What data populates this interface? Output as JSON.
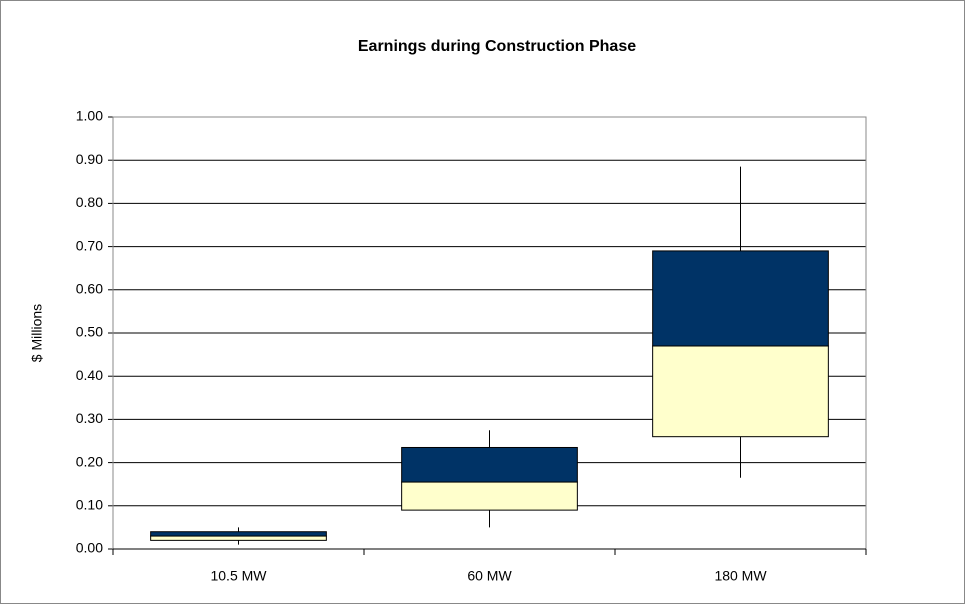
{
  "chart_data": {
    "type": "box",
    "title": "Earnings during Construction Phase",
    "y_label": "$ Millions",
    "categories": [
      "10.5 MW",
      "60 MW",
      "180 MW"
    ],
    "boxes": [
      {
        "min": 0.01,
        "q1": 0.02,
        "median": 0.03,
        "q3": 0.04,
        "max": 0.05
      },
      {
        "min": 0.05,
        "q1": 0.09,
        "median": 0.155,
        "q3": 0.235,
        "max": 0.275
      },
      {
        "min": 0.165,
        "q1": 0.26,
        "median": 0.47,
        "q3": 0.69,
        "max": 0.885
      }
    ],
    "lower_color": "#ffffcc",
    "upper_color": "#003366",
    "ylim": [
      0,
      1
    ],
    "yticks": [
      {
        "value": 0,
        "label": "0.00"
      },
      {
        "value": 0.1,
        "label": "0.10"
      },
      {
        "value": 0.2,
        "label": "0.20"
      },
      {
        "value": 0.3,
        "label": "0.30"
      },
      {
        "value": 0.4,
        "label": "0.40"
      },
      {
        "value": 0.5,
        "label": "0.50"
      },
      {
        "value": 0.6,
        "label": "0.60"
      },
      {
        "value": 0.7,
        "label": "0.70"
      },
      {
        "value": 0.8,
        "label": "0.80"
      },
      {
        "value": 0.9,
        "label": "0.90"
      },
      {
        "value": 1,
        "label": "1.00"
      }
    ],
    "grid": true
  }
}
